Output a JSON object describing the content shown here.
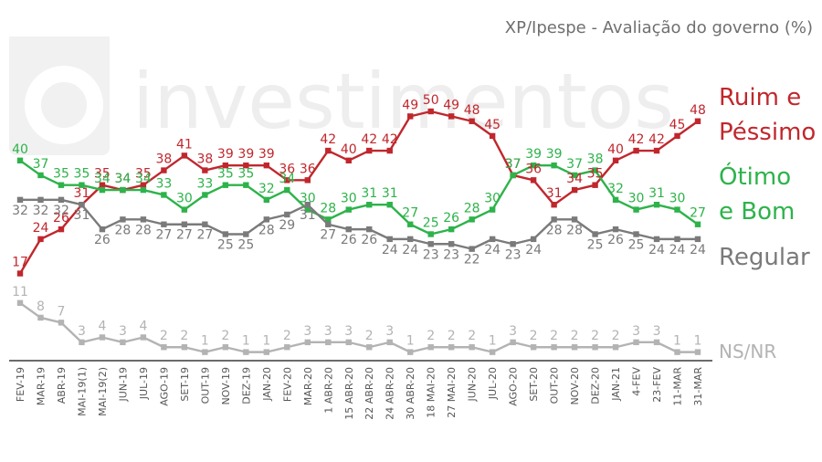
{
  "title": "XP/Ipespe - Avaliação do governo (%)",
  "watermark_text": "investimentos",
  "chart_data": {
    "type": "line",
    "title": "XP/Ipespe - Avaliação do governo (%)",
    "grid": false,
    "legend": "right",
    "ylim": [
      0,
      55
    ],
    "categories": [
      "FEV-19",
      "MAR-19",
      "ABR-19",
      "MAI-19(1)",
      "MAI-19(2)",
      "JUN-19",
      "JUL-19",
      "AGO-19",
      "SET-19",
      "OUT-19",
      "NOV-19",
      "DEZ-19",
      "JAN-20",
      "FEV-20",
      "MAR-20",
      "1 ABR-20",
      "15 ABR-20",
      "22 ABR-20",
      "24 ABR-20",
      "30 ABR-20",
      "18 MAI-20",
      "27 MAI-20",
      "JUN-20",
      "JUL-20",
      "AGO-20",
      "SET-20",
      "OUT-20",
      "NOV-20",
      "DEZ-20",
      "JAN-21",
      "4-FEV",
      "23-FEV",
      "11-MAR",
      "31-MAR"
    ],
    "series": [
      {
        "name": "Ruim e Péssimo",
        "label_lines": [
          "Ruim e",
          "Péssimo"
        ],
        "color": "#c0272d",
        "values": [
          17,
          24,
          26,
          31,
          35,
          34,
          35,
          38,
          41,
          38,
          39,
          39,
          39,
          36,
          36,
          42,
          40,
          42,
          42,
          49,
          50,
          49,
          48,
          45,
          37,
          36,
          31,
          34,
          35,
          40,
          42,
          42,
          45,
          48
        ]
      },
      {
        "name": "Ótimo e Bom",
        "label_lines": [
          "Ótimo",
          "e Bom"
        ],
        "color": "#2db34a",
        "values": [
          40,
          37,
          35,
          35,
          34,
          34,
          34,
          33,
          30,
          33,
          35,
          35,
          32,
          34,
          30,
          28,
          30,
          31,
          31,
          27,
          25,
          26,
          28,
          30,
          37,
          39,
          39,
          37,
          38,
          32,
          30,
          31,
          30,
          27
        ]
      },
      {
        "name": "Regular",
        "label_lines": [
          "Regular"
        ],
        "color": "#7a7a7a",
        "values": [
          32,
          32,
          32,
          31,
          26,
          28,
          28,
          27,
          27,
          27,
          25,
          25,
          28,
          29,
          31,
          27,
          26,
          26,
          24,
          24,
          23,
          23,
          22,
          24,
          23,
          24,
          28,
          28,
          25,
          26,
          25,
          24,
          24,
          24
        ]
      },
      {
        "name": "NS/NR",
        "label_lines": [
          "NS/NR"
        ],
        "color": "#b3b3b3",
        "values": [
          11,
          8,
          7,
          3,
          4,
          3,
          4,
          2,
          2,
          1,
          2,
          1,
          1,
          2,
          3,
          3,
          3,
          2,
          3,
          1,
          2,
          2,
          2,
          1,
          3,
          2,
          2,
          2,
          2,
          2,
          3,
          3,
          1,
          1
        ]
      }
    ]
  }
}
